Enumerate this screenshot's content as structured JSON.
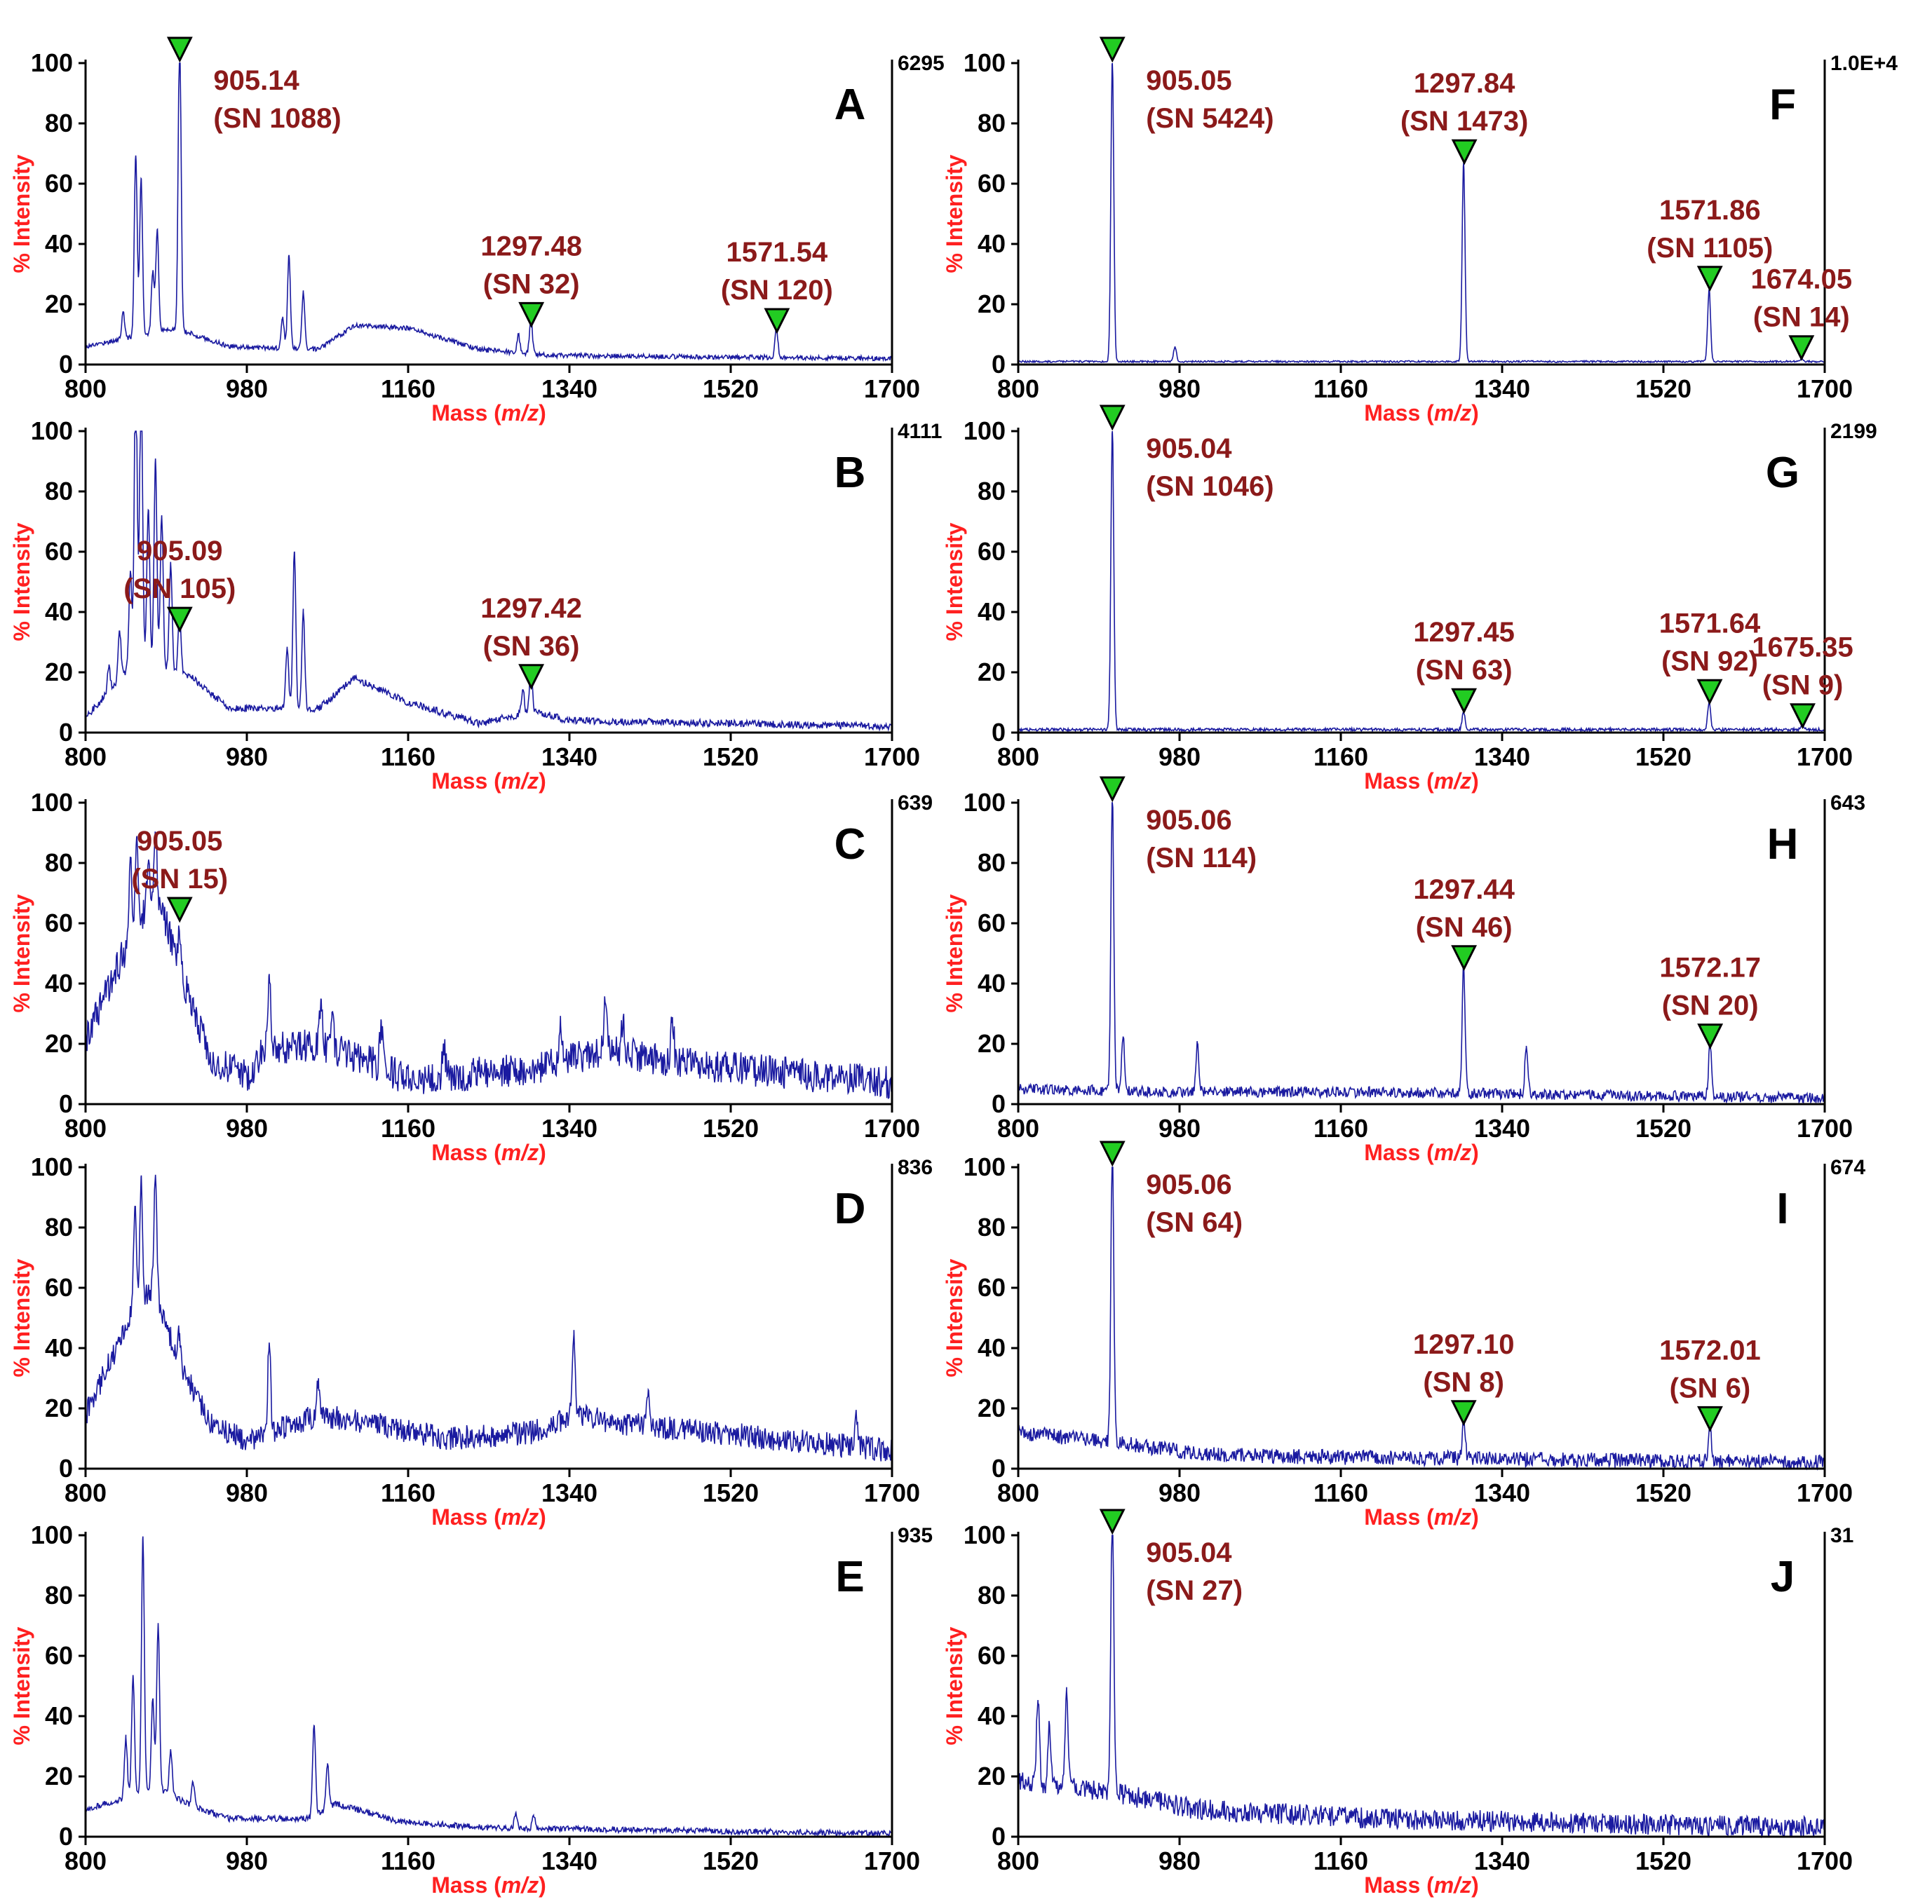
{
  "figure": {
    "colors": {
      "spectrum": "#1a1aa0",
      "axis_label": "#ff2020",
      "peak_label": "#8b1a1a",
      "marker_fill": "#22cc22",
      "marker_stroke": "#000000"
    }
  },
  "chart_data": [
    {
      "id": "A",
      "type": "line",
      "xlabel": "Mass (m/z)",
      "ylabel": "% Intensity",
      "xlim": [
        800,
        1700
      ],
      "ylim": [
        0,
        100
      ],
      "x_ticks": [
        "800",
        "980",
        "1160",
        "1340",
        "1520",
        "1700"
      ],
      "y_ticks": [
        "0",
        "20",
        "40",
        "60",
        "80",
        "100"
      ],
      "max_intensity_label": "6295",
      "noise": 0.8,
      "baseline": [
        [
          800,
          6
        ],
        [
          900,
          12
        ],
        [
          960,
          6
        ],
        [
          1060,
          5
        ],
        [
          1100,
          13
        ],
        [
          1160,
          12
        ],
        [
          1240,
          5
        ],
        [
          1320,
          3
        ],
        [
          1700,
          2
        ]
      ],
      "peaks": [
        [
          842,
          9
        ],
        [
          856,
          60
        ],
        [
          862,
          52
        ],
        [
          875,
          20
        ],
        [
          880,
          34
        ],
        [
          905,
          100
        ],
        [
          1020,
          10
        ],
        [
          1027,
          31
        ],
        [
          1043,
          19
        ],
        [
          1283,
          6
        ],
        [
          1297,
          12
        ],
        [
          1571,
          10
        ]
      ],
      "annotations": [
        {
          "mz": "905.14",
          "sn": "(SN 1088)",
          "x": 905.14,
          "y": 100
        },
        {
          "mz": "1297.48",
          "sn": "(SN 32)",
          "x": 1297.48,
          "y": 12
        },
        {
          "mz": "1571.54",
          "sn": "(SN 120)",
          "x": 1571.54,
          "y": 10
        }
      ]
    },
    {
      "id": "B",
      "type": "line",
      "xlabel": "Mass (m/z)",
      "ylabel": "% Intensity",
      "xlim": [
        800,
        1700
      ],
      "ylim": [
        0,
        100
      ],
      "x_ticks": [
        "800",
        "980",
        "1160",
        "1340",
        "1520",
        "1700"
      ],
      "y_ticks": [
        "0",
        "20",
        "40",
        "60",
        "80",
        "100"
      ],
      "max_intensity_label": "4111",
      "noise": 1.2,
      "baseline": [
        [
          800,
          5
        ],
        [
          860,
          25
        ],
        [
          920,
          18
        ],
        [
          960,
          8
        ],
        [
          1060,
          8
        ],
        [
          1100,
          18
        ],
        [
          1160,
          10
        ],
        [
          1240,
          3
        ],
        [
          1300,
          7
        ],
        [
          1340,
          4
        ],
        [
          1700,
          2
        ]
      ],
      "peaks": [
        [
          826,
          8
        ],
        [
          838,
          16
        ],
        [
          850,
          32
        ],
        [
          856,
          100
        ],
        [
          862,
          96
        ],
        [
          870,
          50
        ],
        [
          878,
          68
        ],
        [
          885,
          50
        ],
        [
          895,
          35
        ],
        [
          905,
          20
        ],
        [
          1025,
          20
        ],
        [
          1033,
          52
        ],
        [
          1043,
          32
        ],
        [
          1288,
          8
        ],
        [
          1297,
          14
        ]
      ],
      "annotations": [
        {
          "mz": "905.09",
          "sn": "(SN 105)",
          "x": 905.09,
          "y": 33
        },
        {
          "mz": "1297.42",
          "sn": "(SN 36)",
          "x": 1297.42,
          "y": 14
        }
      ]
    },
    {
      "id": "C",
      "type": "line",
      "xlabel": "Mass (m/z)",
      "ylabel": "% Intensity",
      "xlim": [
        800,
        1700
      ],
      "ylim": [
        0,
        100
      ],
      "x_ticks": [
        "800",
        "980",
        "1160",
        "1340",
        "1520",
        "1700"
      ],
      "y_ticks": [
        "0",
        "20",
        "40",
        "60",
        "80",
        "100"
      ],
      "max_intensity_label": "639",
      "noise": 5.5,
      "baseline": [
        [
          800,
          22
        ],
        [
          850,
          55
        ],
        [
          880,
          70
        ],
        [
          910,
          40
        ],
        [
          940,
          15
        ],
        [
          980,
          9
        ],
        [
          1000,
          18
        ],
        [
          1060,
          20
        ],
        [
          1120,
          14
        ],
        [
          1160,
          8
        ],
        [
          1300,
          12
        ],
        [
          1380,
          18
        ],
        [
          1450,
          14
        ],
        [
          1700,
          7
        ]
      ],
      "peaks": [
        [
          850,
          25
        ],
        [
          857,
          30
        ],
        [
          870,
          15
        ],
        [
          878,
          18
        ],
        [
          905,
          10
        ],
        [
          1005,
          25
        ],
        [
          1063,
          15
        ],
        [
          1075,
          12
        ],
        [
          1130,
          15
        ],
        [
          1200,
          10
        ],
        [
          1330,
          15
        ],
        [
          1380,
          15
        ],
        [
          1400,
          12
        ],
        [
          1455,
          15
        ]
      ],
      "annotations": [
        {
          "mz": "905.05",
          "sn": "(SN 15)",
          "x": 905.05,
          "y": 60
        }
      ]
    },
    {
      "id": "D",
      "type": "line",
      "xlabel": "Mass (m/z)",
      "ylabel": "% Intensity",
      "xlim": [
        800,
        1700
      ],
      "ylim": [
        0,
        100
      ],
      "x_ticks": [
        "800",
        "980",
        "1160",
        "1340",
        "1520",
        "1700"
      ],
      "y_ticks": [
        "0",
        "20",
        "40",
        "60",
        "80",
        "100"
      ],
      "max_intensity_label": "836",
      "noise": 4.0,
      "baseline": [
        [
          800,
          18
        ],
        [
          850,
          50
        ],
        [
          875,
          60
        ],
        [
          905,
          35
        ],
        [
          940,
          15
        ],
        [
          980,
          9
        ],
        [
          1060,
          18
        ],
        [
          1120,
          15
        ],
        [
          1200,
          10
        ],
        [
          1300,
          12
        ],
        [
          1345,
          18
        ],
        [
          1400,
          15
        ],
        [
          1700,
          6
        ]
      ],
      "peaks": [
        [
          855,
          35
        ],
        [
          862,
          42
        ],
        [
          878,
          40
        ],
        [
          905,
          10
        ],
        [
          1005,
          30
        ],
        [
          1060,
          12
        ],
        [
          1345,
          28
        ],
        [
          1428,
          12
        ],
        [
          1660,
          12
        ]
      ],
      "annotations": []
    },
    {
      "id": "E",
      "type": "line",
      "xlabel": "Mass (m/z)",
      "ylabel": "% Intensity",
      "xlim": [
        800,
        1700
      ],
      "ylim": [
        0,
        100
      ],
      "x_ticks": [
        "800",
        "980",
        "1160",
        "1340",
        "1520",
        "1700"
      ],
      "y_ticks": [
        "0",
        "20",
        "40",
        "60",
        "80",
        "100"
      ],
      "max_intensity_label": "935",
      "noise": 1.0,
      "baseline": [
        [
          800,
          9
        ],
        [
          880,
          16
        ],
        [
          920,
          10
        ],
        [
          960,
          6
        ],
        [
          1050,
          6
        ],
        [
          1080,
          11
        ],
        [
          1150,
          5
        ],
        [
          1250,
          3
        ],
        [
          1700,
          1
        ]
      ],
      "peaks": [
        [
          845,
          20
        ],
        [
          853,
          40
        ],
        [
          864,
          85
        ],
        [
          875,
          30
        ],
        [
          881,
          55
        ],
        [
          895,
          15
        ],
        [
          920,
          8
        ],
        [
          1055,
          30
        ],
        [
          1070,
          15
        ],
        [
          1280,
          5
        ],
        [
          1300,
          4
        ]
      ],
      "annotations": []
    },
    {
      "id": "F",
      "type": "line",
      "xlabel": "Mass (m/z)",
      "ylabel": "% Intensity",
      "xlim": [
        800,
        1700
      ],
      "ylim": [
        0,
        100
      ],
      "x_ticks": [
        "800",
        "980",
        "1160",
        "1340",
        "1520",
        "1700"
      ],
      "y_ticks": [
        "0",
        "20",
        "40",
        "60",
        "80",
        "100"
      ],
      "max_intensity_label": "1.0E+4",
      "noise": 0.3,
      "baseline": [
        [
          800,
          1
        ],
        [
          1700,
          1
        ]
      ],
      "peaks": [
        [
          905,
          100
        ],
        [
          975,
          5
        ],
        [
          1297,
          66
        ],
        [
          1571,
          24
        ],
        [
          1674,
          1
        ]
      ],
      "annotations": [
        {
          "mz": "905.05",
          "sn": "(SN 5424)",
          "x": 905.05,
          "y": 100
        },
        {
          "mz": "1297.84",
          "sn": "(SN 1473)",
          "x": 1297.84,
          "y": 66
        },
        {
          "mz": "1571.86",
          "sn": "(SN 1105)",
          "x": 1571.86,
          "y": 24
        },
        {
          "mz": "1674.05",
          "sn": "(SN 14)",
          "x": 1674.05,
          "y": 1
        }
      ]
    },
    {
      "id": "G",
      "type": "line",
      "xlabel": "Mass (m/z)",
      "ylabel": "% Intensity",
      "xlim": [
        800,
        1700
      ],
      "ylim": [
        0,
        100
      ],
      "x_ticks": [
        "800",
        "980",
        "1160",
        "1340",
        "1520",
        "1700"
      ],
      "y_ticks": [
        "0",
        "20",
        "40",
        "60",
        "80",
        "100"
      ],
      "max_intensity_label": "2199",
      "noise": 0.5,
      "baseline": [
        [
          800,
          1
        ],
        [
          1700,
          1
        ]
      ],
      "peaks": [
        [
          905,
          100
        ],
        [
          1297,
          6
        ],
        [
          1571,
          9
        ],
        [
          1675,
          1
        ]
      ],
      "annotations": [
        {
          "mz": "905.04",
          "sn": "(SN 1046)",
          "x": 905.04,
          "y": 100
        },
        {
          "mz": "1297.45",
          "sn": "(SN 63)",
          "x": 1297.45,
          "y": 6
        },
        {
          "mz": "1571.64",
          "sn": "(SN 92)",
          "x": 1571.64,
          "y": 9
        },
        {
          "mz": "1675.35",
          "sn": "(SN 9)",
          "x": 1675.35,
          "y": 1
        }
      ]
    },
    {
      "id": "H",
      "type": "line",
      "xlabel": "Mass (m/z)",
      "ylabel": "% Intensity",
      "xlim": [
        800,
        1700
      ],
      "ylim": [
        0,
        100
      ],
      "x_ticks": [
        "800",
        "980",
        "1160",
        "1340",
        "1520",
        "1700"
      ],
      "y_ticks": [
        "0",
        "20",
        "40",
        "60",
        "80",
        "100"
      ],
      "max_intensity_label": "643",
      "noise": 1.8,
      "baseline": [
        [
          800,
          5
        ],
        [
          1000,
          4
        ],
        [
          1200,
          4
        ],
        [
          1700,
          2
        ]
      ],
      "peaks": [
        [
          905,
          100
        ],
        [
          917,
          18
        ],
        [
          1000,
          16
        ],
        [
          1297,
          44
        ],
        [
          1367,
          16
        ],
        [
          1572,
          18
        ]
      ],
      "annotations": [
        {
          "mz": "905.06",
          "sn": "(SN 114)",
          "x": 905.06,
          "y": 100
        },
        {
          "mz": "1297.44",
          "sn": "(SN 46)",
          "x": 1297.44,
          "y": 44
        },
        {
          "mz": "1572.17",
          "sn": "(SN 20)",
          "x": 1572.17,
          "y": 18
        }
      ]
    },
    {
      "id": "I",
      "type": "line",
      "xlabel": "Mass (m/z)",
      "ylabel": "% Intensity",
      "xlim": [
        800,
        1700
      ],
      "ylim": [
        0,
        100
      ],
      "x_ticks": [
        "800",
        "980",
        "1160",
        "1340",
        "1520",
        "1700"
      ],
      "y_ticks": [
        "0",
        "20",
        "40",
        "60",
        "80",
        "100"
      ],
      "max_intensity_label": "674",
      "noise": 2.5,
      "baseline": [
        [
          800,
          12
        ],
        [
          900,
          9
        ],
        [
          1000,
          5
        ],
        [
          1100,
          4
        ],
        [
          1700,
          2
        ]
      ],
      "peaks": [
        [
          905,
          100
        ],
        [
          1297,
          14
        ],
        [
          1572,
          12
        ]
      ],
      "annotations": [
        {
          "mz": "905.06",
          "sn": "(SN 64)",
          "x": 905.06,
          "y": 100
        },
        {
          "mz": "1297.10",
          "sn": "(SN 8)",
          "x": 1297.1,
          "y": 14
        },
        {
          "mz": "1572.01",
          "sn": "(SN 6)",
          "x": 1572.01,
          "y": 12
        }
      ]
    },
    {
      "id": "J",
      "type": "line",
      "xlabel": "Mass (m/z)",
      "ylabel": "% Intensity",
      "xlim": [
        800,
        1700
      ],
      "ylim": [
        0,
        100
      ],
      "x_ticks": [
        "800",
        "980",
        "1160",
        "1340",
        "1520",
        "1700"
      ],
      "y_ticks": [
        "0",
        "20",
        "40",
        "60",
        "80",
        "100"
      ],
      "max_intensity_label": "31",
      "noise": 3.5,
      "baseline": [
        [
          800,
          18
        ],
        [
          900,
          15
        ],
        [
          1000,
          9
        ],
        [
          1200,
          6
        ],
        [
          1700,
          3
        ]
      ],
      "peaks": [
        [
          822,
          28
        ],
        [
          835,
          20
        ],
        [
          854,
          32
        ],
        [
          905,
          100
        ]
      ],
      "annotations": [
        {
          "mz": "905.04",
          "sn": "(SN 27)",
          "x": 905.04,
          "y": 100
        }
      ]
    }
  ]
}
